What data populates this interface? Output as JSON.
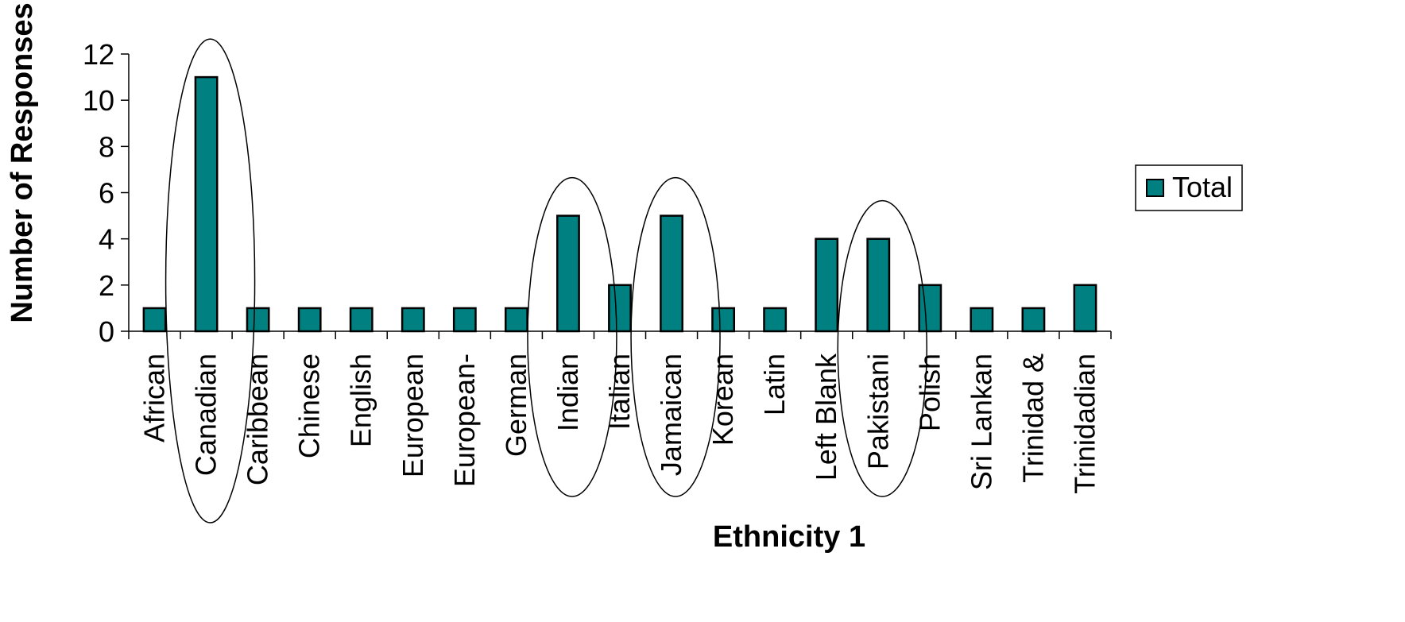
{
  "chart_data": {
    "type": "bar",
    "xlabel": "Ethnicity 1",
    "ylabel": "Number of Responses",
    "ylim": [
      0,
      12
    ],
    "yticks": [
      0,
      2,
      4,
      6,
      8,
      10,
      12
    ],
    "grid": false,
    "legend_position": "right",
    "categories": [
      "African",
      "Canadian",
      "Caribbean",
      "Chinese",
      "English",
      "European",
      "European-",
      "German",
      "Indian",
      "Italian",
      "Jamaican",
      "Korean",
      "Latin",
      "Left Blank",
      "Pakistani",
      "Polish",
      "Sri Lankan",
      "Trinidad &",
      "Trinidadian"
    ],
    "series": [
      {
        "name": "Total",
        "color": "#008080",
        "values": [
          1,
          11,
          1,
          1,
          1,
          1,
          1,
          1,
          5,
          2,
          5,
          1,
          1,
          4,
          4,
          2,
          1,
          1,
          2
        ]
      }
    ],
    "highlighted_categories": [
      "Canadian",
      "Indian",
      "Jamaican",
      "Pakistani"
    ]
  }
}
